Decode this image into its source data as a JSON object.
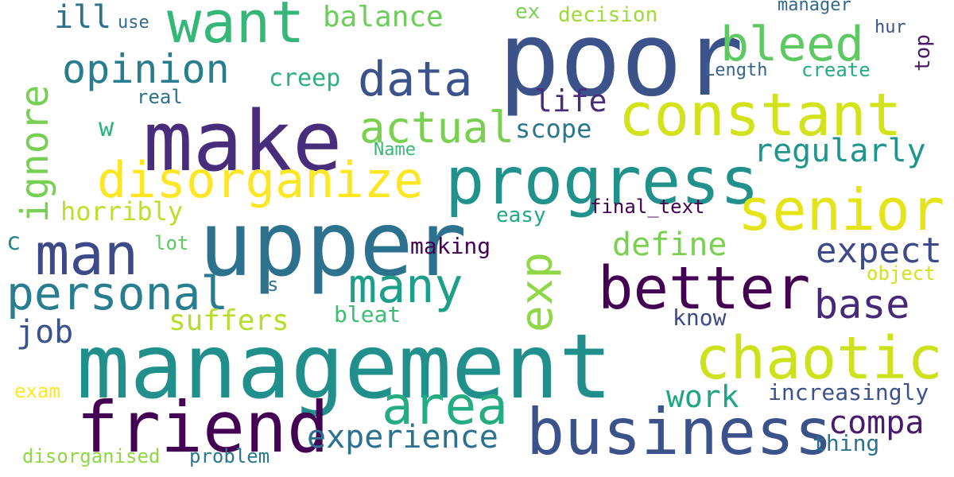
{
  "words": [
    {
      "text": "management",
      "color": "#21908d"
    },
    {
      "text": "poor",
      "color": "#3b528b"
    },
    {
      "text": "upper",
      "color": "#2c728e"
    },
    {
      "text": "make",
      "color": "#472d7b"
    },
    {
      "text": "business",
      "color": "#3b528b"
    },
    {
      "text": "friend",
      "color": "#440154"
    },
    {
      "text": "progress",
      "color": "#21918c"
    },
    {
      "text": "constant",
      "color": "#d2e21b"
    },
    {
      "text": "senior",
      "color": "#e5e419"
    },
    {
      "text": "chaotic",
      "color": "#cde11d"
    },
    {
      "text": "better",
      "color": "#440154"
    },
    {
      "text": "want",
      "color": "#35b779"
    },
    {
      "text": "disorganize",
      "color": "#fde725"
    },
    {
      "text": "man",
      "color": "#3e4989"
    },
    {
      "text": "many",
      "color": "#1f9e89"
    },
    {
      "text": "area",
      "color": "#25ac82"
    },
    {
      "text": "personal",
      "color": "#287d8e"
    },
    {
      "text": "data",
      "color": "#3b528b"
    },
    {
      "text": "exp",
      "color": "#8fd744"
    },
    {
      "text": "bleed",
      "color": "#5ec962"
    },
    {
      "text": "ignore",
      "color": "#75d054"
    },
    {
      "text": "actual",
      "color": "#7ad151"
    },
    {
      "text": "opinion",
      "color": "#287d8e"
    },
    {
      "text": "experience",
      "color": "#2c728e"
    },
    {
      "text": "regularly",
      "color": "#1f968b"
    },
    {
      "text": "base",
      "color": "#482878"
    },
    {
      "text": "expect",
      "color": "#3e4989"
    },
    {
      "text": "compa",
      "color": "#481b6d"
    },
    {
      "text": "balance",
      "color": "#6ccd5a"
    },
    {
      "text": "work",
      "color": "#20a486"
    },
    {
      "text": "define",
      "color": "#7ad151"
    },
    {
      "text": "life",
      "color": "#472d7b"
    },
    {
      "text": "job",
      "color": "#3b528b"
    },
    {
      "text": "suffers",
      "color": "#b5de2b"
    },
    {
      "text": "ill",
      "color": "#2c728e"
    },
    {
      "text": "horribly",
      "color": "#bddf26"
    },
    {
      "text": "scope",
      "color": "#2a788e"
    },
    {
      "text": "creep",
      "color": "#2cb17e"
    },
    {
      "text": "increasingly",
      "color": "#3b528b"
    },
    {
      "text": "thing",
      "color": "#2c728e"
    },
    {
      "text": "disorganised",
      "color": "#8fd744"
    },
    {
      "text": "problem",
      "color": "#2a788e"
    },
    {
      "text": "making",
      "color": "#440154"
    },
    {
      "text": "know",
      "color": "#3e4989"
    },
    {
      "text": "bleat",
      "color": "#3dbc74"
    },
    {
      "text": "object",
      "color": "#d2e21b"
    },
    {
      "text": "easy",
      "color": "#22a884"
    },
    {
      "text": "final_text",
      "color": "#440154"
    },
    {
      "text": "top",
      "color": "#481b6d"
    },
    {
      "text": "decision",
      "color": "#9fda3a"
    },
    {
      "text": "manager",
      "color": "#31688e"
    },
    {
      "text": "hur",
      "color": "#3b528b"
    },
    {
      "text": "create",
      "color": "#25ac82"
    },
    {
      "text": "Length",
      "color": "#33638d"
    },
    {
      "text": "real",
      "color": "#2d708e"
    },
    {
      "text": "use",
      "color": "#30698e"
    },
    {
      "text": "ex",
      "color": "#7ad151"
    },
    {
      "text": "w",
      "color": "#2db27d"
    },
    {
      "text": "Name",
      "color": "#38b977"
    },
    {
      "text": "c",
      "color": "#25838e"
    },
    {
      "text": "lot",
      "color": "#5ec962"
    },
    {
      "text": "s",
      "color": "#2c728e"
    },
    {
      "text": "exam",
      "color": "#fde725"
    }
  ]
}
